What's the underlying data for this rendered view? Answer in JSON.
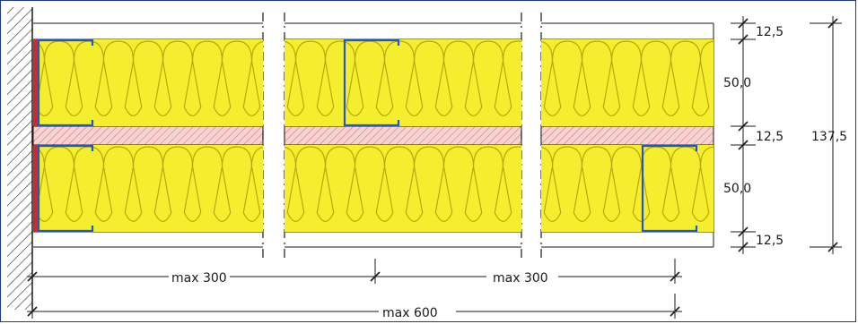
{
  "colors": {
    "frame": "#1f3a93",
    "insulation_fill": "#f5ee2e",
    "insulation_stroke": "#b8a90c",
    "stud": "#1e57c7",
    "sealing_strip": "#d7262b",
    "mid_layer_fill": "#f3c6c6",
    "mid_layer_hatch": "#d26a6a",
    "wall_hatch": "#444444",
    "line": "#1a1a1a"
  },
  "icons": {
    "wall": "hatched-wall",
    "stud": "c-profile-stud",
    "insulation": "mineral-wool-insulation",
    "tick": "dimension-tick"
  },
  "dimensions": {
    "vertical": {
      "board_top": "12,5",
      "cavity_upper": "50,0",
      "board_middle": "12,5",
      "cavity_lower": "50,0",
      "board_bottom": "12,5",
      "total": "137,5"
    },
    "horizontal": {
      "span_1": "max 300",
      "span_2": "max 300",
      "span_total": "max 600"
    }
  }
}
